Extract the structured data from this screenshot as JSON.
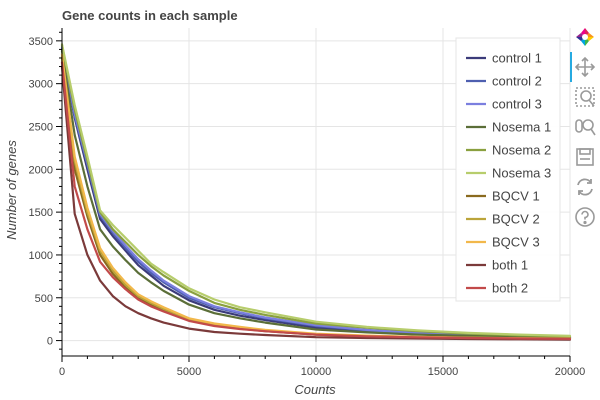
{
  "chart_data": {
    "type": "line",
    "title": "Gene counts in each sample",
    "xlabel": "Counts",
    "ylabel": "Number of genes",
    "xlim": [
      0,
      20000
    ],
    "ylim": [
      -180,
      3650
    ],
    "xticks": [
      0,
      5000,
      10000,
      15000,
      20000
    ],
    "xtick_labels": [
      "0",
      "5000",
      "10000",
      "15000",
      "20000"
    ],
    "yticks": [
      0,
      500,
      1000,
      1500,
      2000,
      2500,
      3000,
      3500
    ],
    "ytick_labels": [
      "0",
      "500",
      "1000",
      "1500",
      "2000",
      "2500",
      "3000",
      "3500"
    ],
    "grid": true,
    "legend_position": "top-right",
    "series": [
      {
        "name": "control 1",
        "color": "#3b3b7a",
        "x": [
          0,
          500,
          1000,
          1500,
          2000,
          2500,
          3000,
          3500,
          4000,
          5000,
          6000,
          7000,
          8000,
          10000,
          12000,
          14000,
          16000,
          18000,
          20000
        ],
        "y": [
          3400,
          2600,
          2000,
          1420,
          1220,
          1050,
          880,
          760,
          640,
          470,
          360,
          290,
          240,
          150,
          110,
          80,
          60,
          45,
          35
        ]
      },
      {
        "name": "control 2",
        "color": "#4e5fb0",
        "x": [
          0,
          500,
          1000,
          1500,
          2000,
          2500,
          3000,
          3500,
          4000,
          5000,
          6000,
          7000,
          8000,
          10000,
          12000,
          14000,
          16000,
          18000,
          20000
        ],
        "y": [
          3420,
          2620,
          2050,
          1460,
          1260,
          1080,
          920,
          790,
          680,
          500,
          390,
          320,
          260,
          170,
          120,
          85,
          62,
          48,
          38
        ]
      },
      {
        "name": "control 3",
        "color": "#7b7fdf",
        "x": [
          0,
          500,
          1000,
          1500,
          2000,
          2500,
          3000,
          3500,
          4000,
          5000,
          6000,
          7000,
          8000,
          10000,
          12000,
          14000,
          16000,
          18000,
          20000
        ],
        "y": [
          3440,
          2650,
          2080,
          1480,
          1280,
          1110,
          950,
          820,
          700,
          520,
          400,
          330,
          270,
          180,
          125,
          90,
          65,
          50,
          40
        ]
      },
      {
        "name": "Nosema 1",
        "color": "#5b6e38",
        "x": [
          0,
          500,
          1000,
          1500,
          2000,
          2500,
          3000,
          3500,
          4000,
          5000,
          6000,
          7000,
          8000,
          10000,
          12000,
          14000,
          16000,
          18000,
          20000
        ],
        "y": [
          3380,
          2400,
          1800,
          1300,
          1100,
          940,
          790,
          680,
          580,
          420,
          320,
          260,
          210,
          130,
          95,
          70,
          55,
          45,
          35
        ]
      },
      {
        "name": "Nosema 2",
        "color": "#8aa03f",
        "x": [
          0,
          500,
          1000,
          1500,
          2000,
          2500,
          3000,
          3500,
          4000,
          5000,
          6000,
          7000,
          8000,
          10000,
          12000,
          14000,
          16000,
          18000,
          20000
        ],
        "y": [
          3450,
          2700,
          2100,
          1500,
          1300,
          1150,
          1000,
          870,
          760,
          580,
          440,
          360,
          300,
          200,
          150,
          110,
          80,
          60,
          50
        ]
      },
      {
        "name": "Nosema 3",
        "color": "#b7cd6c",
        "x": [
          0,
          500,
          1000,
          1500,
          2000,
          2500,
          3000,
          3500,
          4000,
          5000,
          6000,
          7000,
          8000,
          10000,
          12000,
          14000,
          16000,
          18000,
          20000
        ],
        "y": [
          3460,
          2750,
          2150,
          1520,
          1350,
          1200,
          1050,
          900,
          800,
          610,
          480,
          390,
          330,
          220,
          160,
          120,
          90,
          70,
          55
        ]
      },
      {
        "name": "BQCV 1",
        "color": "#8a6a1f",
        "x": [
          0,
          500,
          1000,
          1500,
          2000,
          2500,
          3000,
          3500,
          4000,
          5000,
          6000,
          7000,
          8000,
          10000,
          12000,
          14000,
          16000,
          18000,
          20000
        ],
        "y": [
          3300,
          2000,
          1450,
          1000,
          780,
          620,
          500,
          420,
          350,
          240,
          180,
          140,
          110,
          70,
          50,
          40,
          30,
          25,
          20
        ]
      },
      {
        "name": "BQCV 2",
        "color": "#bba43a",
        "x": [
          0,
          500,
          1000,
          1500,
          2000,
          2500,
          3000,
          3500,
          4000,
          5000,
          6000,
          7000,
          8000,
          10000,
          12000,
          14000,
          16000,
          18000,
          20000
        ],
        "y": [
          3320,
          2100,
          1500,
          1050,
          820,
          650,
          520,
          440,
          370,
          250,
          190,
          150,
          120,
          75,
          55,
          42,
          32,
          26,
          22
        ]
      },
      {
        "name": "BQCV 3",
        "color": "#f2b84b",
        "x": [
          0,
          500,
          1000,
          1500,
          2000,
          2500,
          3000,
          3500,
          4000,
          5000,
          6000,
          7000,
          8000,
          10000,
          12000,
          14000,
          16000,
          18000,
          20000
        ],
        "y": [
          3340,
          2150,
          1550,
          1080,
          850,
          680,
          540,
          460,
          390,
          260,
          200,
          160,
          125,
          80,
          58,
          44,
          34,
          28,
          24
        ]
      },
      {
        "name": "both 1",
        "color": "#7b3a3a",
        "x": [
          0,
          500,
          1000,
          1500,
          2000,
          2500,
          3000,
          3500,
          4000,
          5000,
          6000,
          7000,
          8000,
          10000,
          12000,
          14000,
          16000,
          18000,
          20000
        ],
        "y": [
          3200,
          1480,
          1000,
          700,
          520,
          400,
          320,
          260,
          210,
          140,
          100,
          80,
          65,
          40,
          30,
          24,
          18,
          15,
          12
        ]
      },
      {
        "name": "both 2",
        "color": "#c24a4a",
        "x": [
          0,
          500,
          1000,
          1500,
          2000,
          2500,
          3000,
          3500,
          4000,
          5000,
          6000,
          7000,
          8000,
          10000,
          12000,
          14000,
          16000,
          18000,
          20000
        ],
        "y": [
          3250,
          1800,
          1300,
          920,
          740,
          600,
          480,
          400,
          340,
          230,
          170,
          135,
          110,
          70,
          50,
          38,
          30,
          24,
          20
        ]
      }
    ]
  },
  "toolbar": {
    "tools": [
      {
        "name": "bokeh-logo-icon",
        "active": false
      },
      {
        "name": "pan-tool-icon",
        "active": true
      },
      {
        "name": "box-zoom-tool-icon",
        "active": false
      },
      {
        "name": "wheel-zoom-tool-icon",
        "active": false
      },
      {
        "name": "save-tool-icon",
        "active": false
      },
      {
        "name": "reset-tool-icon",
        "active": false
      },
      {
        "name": "help-tool-icon",
        "active": false
      }
    ]
  }
}
